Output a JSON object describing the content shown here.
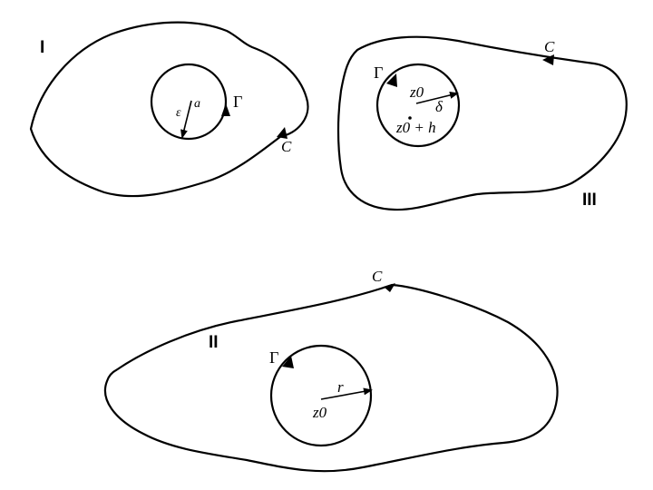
{
  "regions": {
    "I": {
      "label": "I",
      "contour_label": "C",
      "circle_label": "Γ",
      "radius_label_inner": "ε",
      "radius_label_outer": "a"
    },
    "II": {
      "label": "II",
      "contour_label": "C",
      "circle_label": "Γ",
      "radius_label": "r",
      "center_label": "z0"
    },
    "III": {
      "label": "III",
      "contour_label": "C",
      "circle_label": "Γ",
      "radius_label": "δ",
      "center_label": "z0",
      "shifted_point_label": "z0 + h"
    }
  }
}
